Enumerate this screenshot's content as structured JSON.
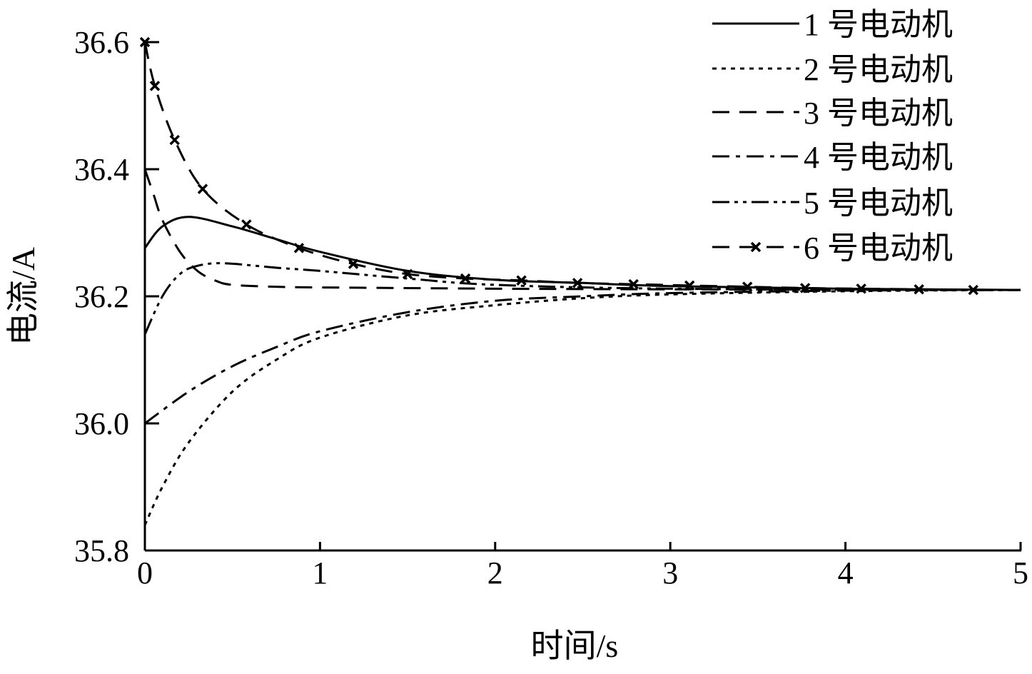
{
  "chart_data": {
    "type": "line",
    "title": "",
    "xlabel": "时间/s",
    "ylabel": "电流/A",
    "xlim": [
      0,
      5
    ],
    "ylim": [
      35.8,
      36.6
    ],
    "xticks": [
      "0",
      "1",
      "2",
      "3",
      "4",
      "5"
    ],
    "yticks": [
      "35.8",
      "36.0",
      "36.2",
      "36.4",
      "36.6"
    ],
    "grid": false,
    "legend_position": "top-right",
    "series": [
      {
        "name": "1 号电动机",
        "style": "solid",
        "x": [
          0,
          0.1,
          0.25,
          0.5,
          0.75,
          1,
          1.5,
          2,
          2.5,
          3,
          4,
          5
        ],
        "y": [
          36.276,
          36.31,
          36.325,
          36.31,
          36.29,
          36.27,
          36.24,
          36.226,
          36.221,
          36.216,
          36.212,
          36.21
        ]
      },
      {
        "name": "2 号电动机",
        "style": "dotted",
        "x": [
          0,
          0.1,
          0.25,
          0.5,
          0.75,
          1,
          1.5,
          2,
          2.5,
          3,
          4,
          5
        ],
        "y": [
          35.84,
          35.9,
          35.97,
          36.05,
          36.1,
          36.135,
          36.17,
          36.186,
          36.197,
          36.203,
          36.208,
          36.21
        ]
      },
      {
        "name": "3 号电动机",
        "style": "dashed",
        "x": [
          0,
          0.05,
          0.1,
          0.2,
          0.3,
          0.4,
          0.5,
          0.75,
          1,
          2,
          3,
          5
        ],
        "y": [
          36.4,
          36.36,
          36.32,
          36.27,
          36.24,
          36.225,
          36.218,
          36.215,
          36.214,
          36.212,
          36.211,
          36.21
        ]
      },
      {
        "name": "4 号电动机",
        "style": "dash-dot",
        "x": [
          0,
          0.25,
          0.5,
          0.75,
          1,
          1.5,
          2,
          2.5,
          3,
          4,
          5
        ],
        "y": [
          36.0,
          36.05,
          36.09,
          36.12,
          36.145,
          36.175,
          36.193,
          36.2,
          36.205,
          36.209,
          36.21
        ]
      },
      {
        "name": "5 号电动机",
        "style": "dash-dot-dot",
        "x": [
          0,
          0.1,
          0.2,
          0.3,
          0.45,
          0.75,
          1,
          1.5,
          2,
          3,
          5
        ],
        "y": [
          36.14,
          36.2,
          36.235,
          36.248,
          36.252,
          36.245,
          36.24,
          36.228,
          36.218,
          36.212,
          36.21
        ]
      },
      {
        "name": "6 号电动机",
        "style": "long-dash with x markers",
        "x": [
          0,
          0.057,
          0.17,
          0.33,
          0.58,
          0.88,
          1.19,
          1.5,
          1.83,
          2.15,
          2.47,
          2.79,
          3.11,
          3.44,
          3.77,
          4.09,
          4.42,
          4.73,
          5
        ],
        "y": [
          36.6,
          36.531,
          36.446,
          36.369,
          36.313,
          36.276,
          36.251,
          36.235,
          36.228,
          36.225,
          36.221,
          36.219,
          36.217,
          36.215,
          36.213,
          36.212,
          36.211,
          36.21,
          36.21
        ],
        "markers": [
          1,
          1,
          1,
          1,
          1,
          1,
          1,
          1,
          1,
          1,
          1,
          1,
          1,
          1,
          1,
          1,
          1,
          1,
          0
        ]
      }
    ]
  }
}
